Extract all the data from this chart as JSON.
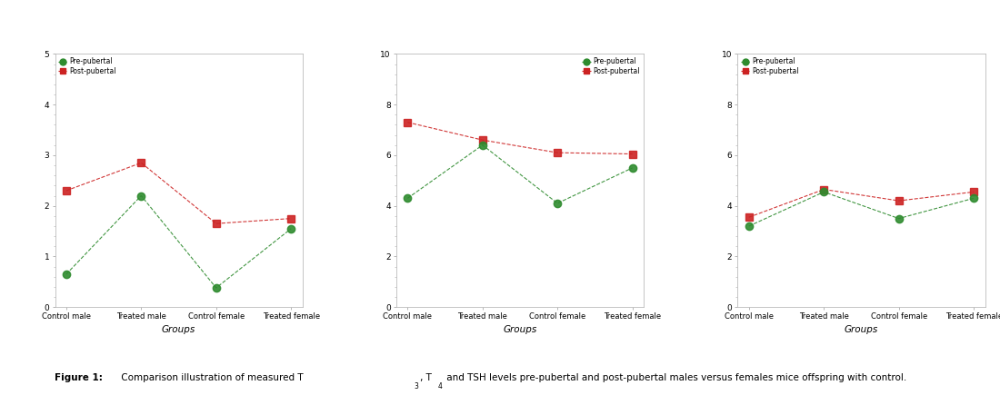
{
  "categories": [
    "Control male",
    "Treated male",
    "Control female",
    "Treated female"
  ],
  "xlabel": "Groups",
  "legend_pre": "Pre-pubertal",
  "legend_post": "Post-pubertal",
  "green_color": "#2e8b2e",
  "red_color": "#cc2222",
  "charts": [
    {
      "ylim": [
        0,
        5
      ],
      "yticks": [
        0,
        1,
        2,
        3,
        4,
        5
      ],
      "minor_interval": 0.2,
      "pre_values": [
        0.65,
        2.2,
        0.38,
        1.55
      ],
      "post_values": [
        2.3,
        2.85,
        1.65,
        1.75
      ],
      "legend_loc": "upper left"
    },
    {
      "ylim": [
        0,
        10
      ],
      "yticks": [
        0,
        2,
        4,
        6,
        8,
        10
      ],
      "minor_interval": 0.4,
      "pre_values": [
        4.3,
        6.4,
        4.1,
        5.5
      ],
      "post_values": [
        7.3,
        6.6,
        6.1,
        6.05
      ],
      "legend_loc": "upper right"
    },
    {
      "ylim": [
        0,
        10
      ],
      "yticks": [
        0,
        2,
        4,
        6,
        8,
        10
      ],
      "minor_interval": 0.4,
      "pre_values": [
        3.2,
        4.55,
        3.5,
        4.3
      ],
      "post_values": [
        3.55,
        4.65,
        4.2,
        4.55
      ],
      "legend_loc": "upper left"
    }
  ],
  "caption_bold": "Figure 1:",
  "caption_normal": " Comparison illustration of measured T",
  "subscript_3": "3",
  "caption_t4": ", T",
  "subscript_4": "4",
  "caption_end": " and TSH levels pre-pubertal and post-pubertal males versus females mice offspring with control."
}
